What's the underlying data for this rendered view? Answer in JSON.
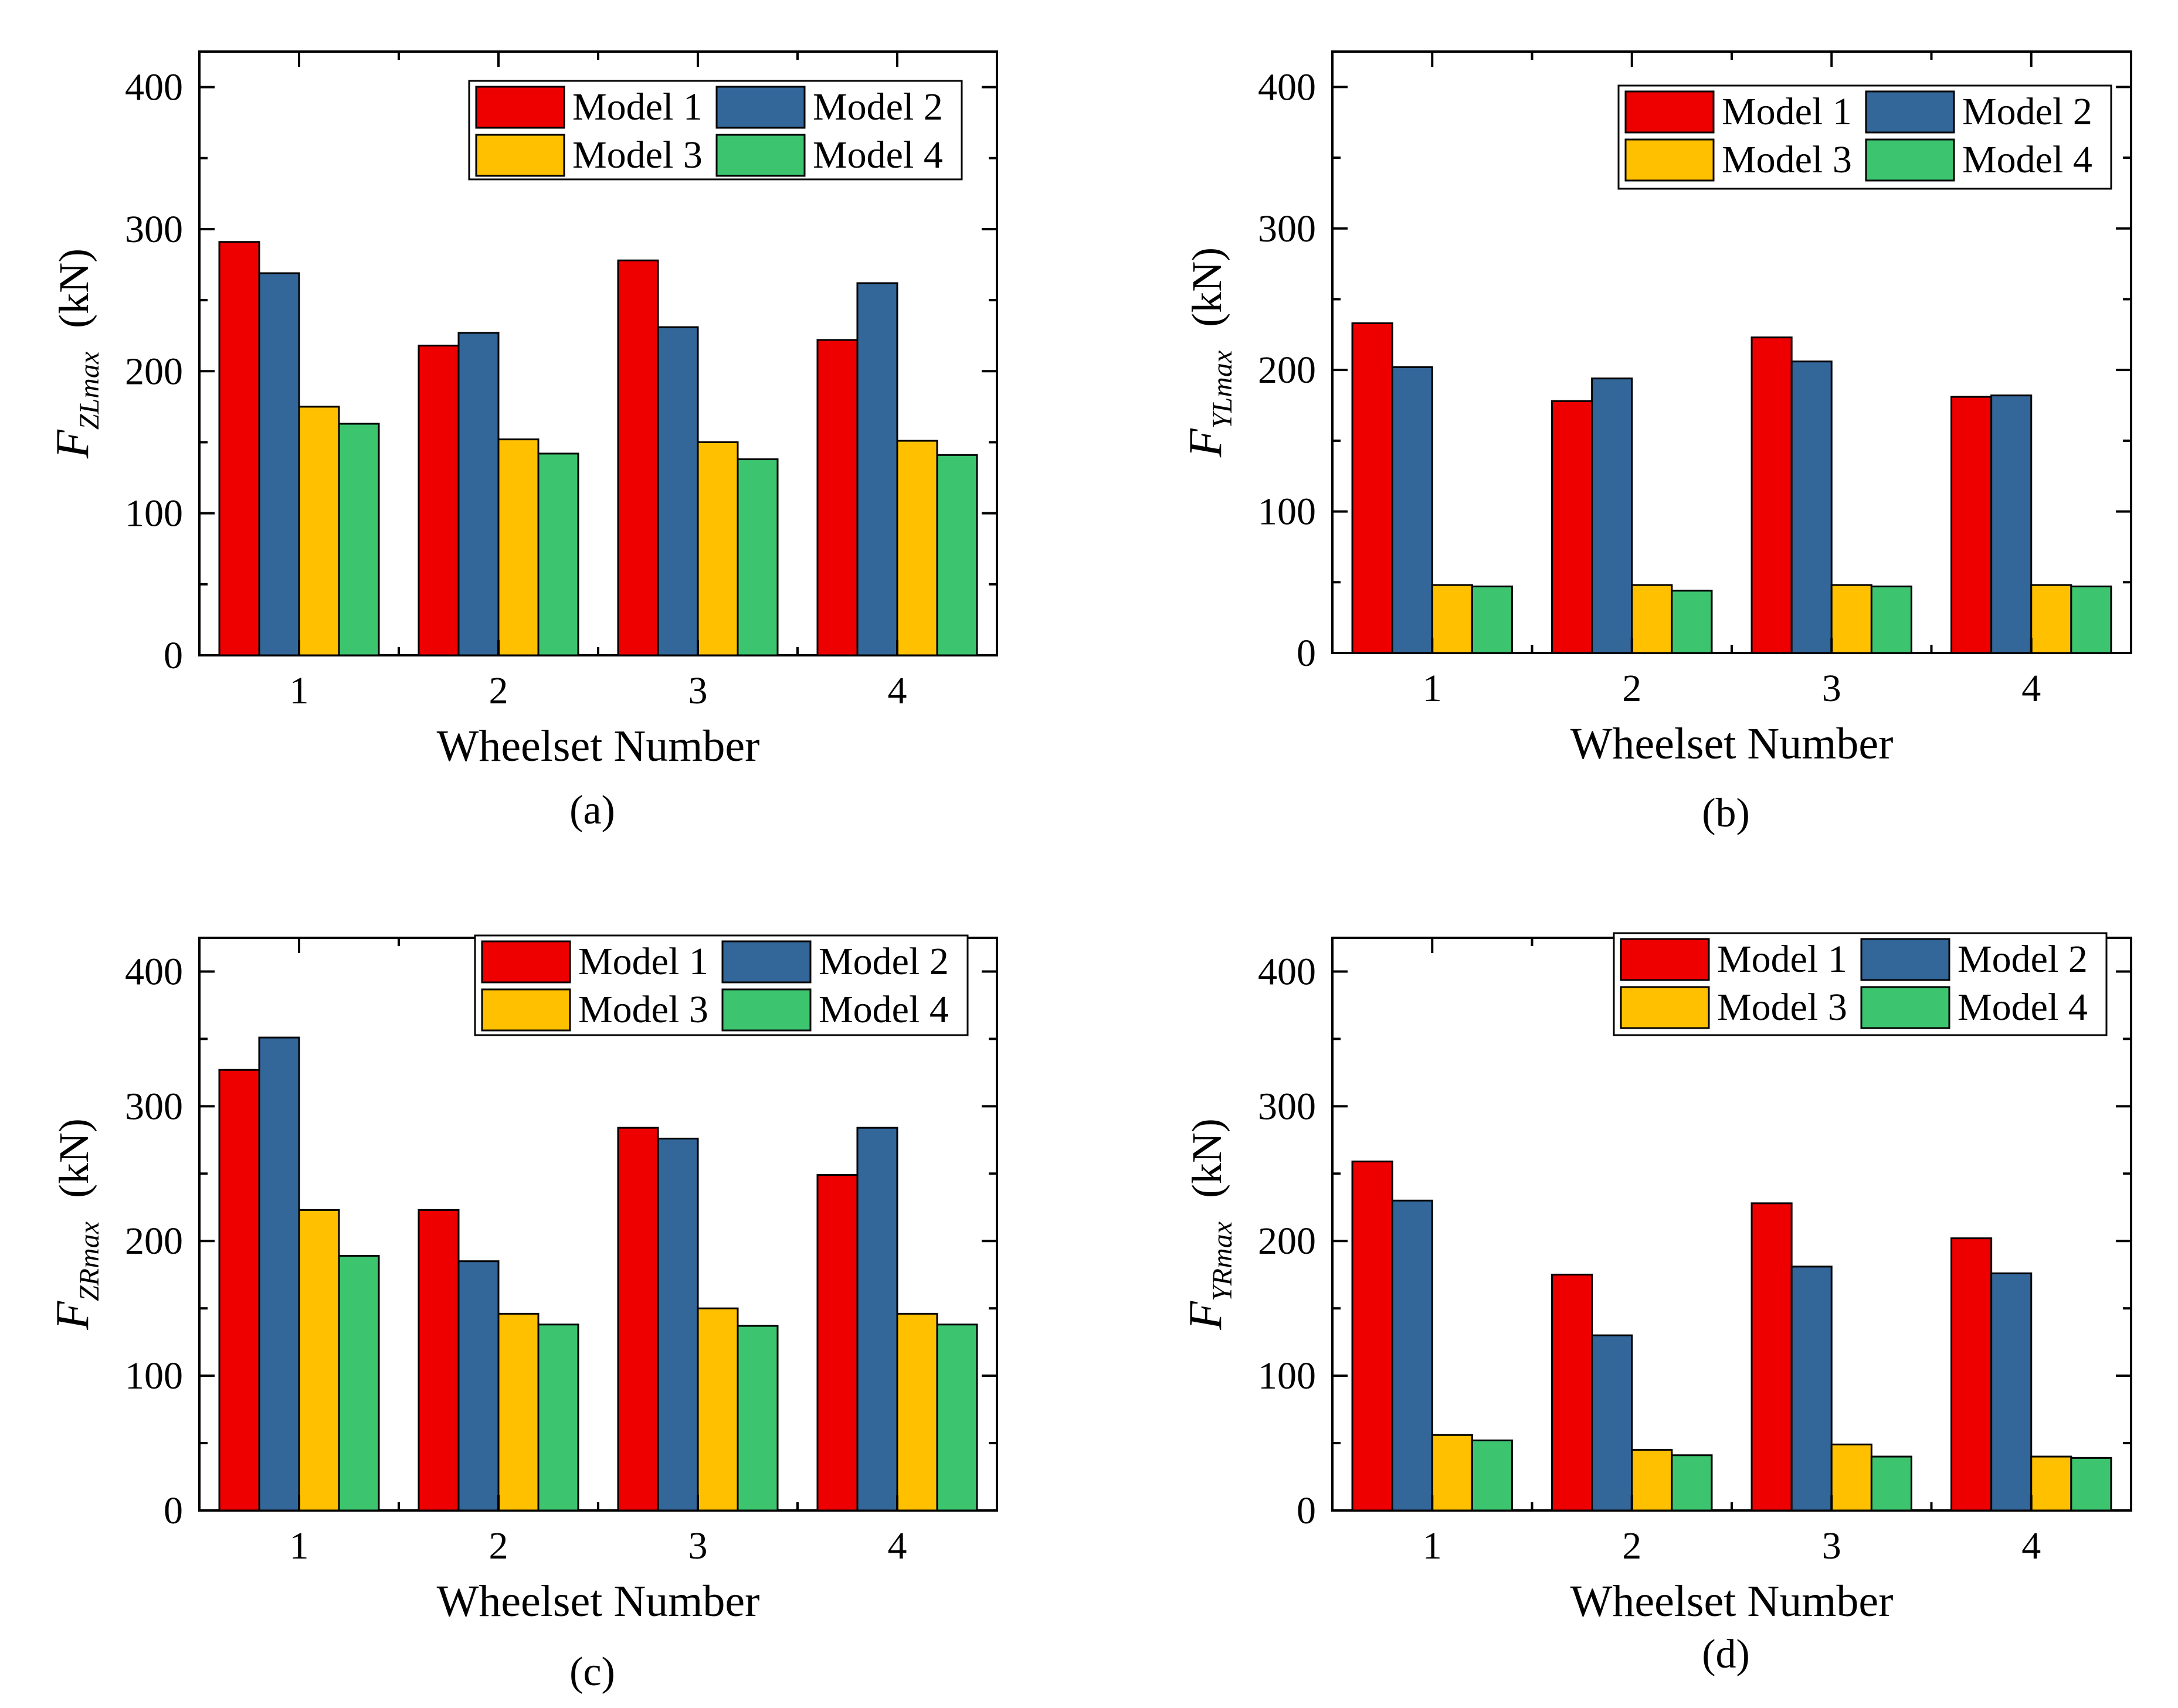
{
  "chart_data": [
    {
      "panel": "a",
      "type": "bar",
      "caption": "(a)",
      "ylabel": {
        "main": "F",
        "sub": "ZLmax",
        "unit": "(kN)"
      },
      "xlabel": "Wheelset Number",
      "categories": [
        "1",
        "2",
        "3",
        "4"
      ],
      "ylim": [
        0,
        425
      ],
      "yticks": [
        "0",
        "100",
        "200",
        "300",
        "400"
      ],
      "series": [
        {
          "name": "Model 1",
          "values": [
            291,
            218,
            278,
            222
          ]
        },
        {
          "name": "Model 2",
          "values": [
            269,
            227,
            231,
            262
          ]
        },
        {
          "name": "Model 3",
          "values": [
            175,
            152,
            150,
            151
          ]
        },
        {
          "name": "Model 4",
          "values": [
            163,
            142,
            138,
            141
          ]
        }
      ]
    },
    {
      "panel": "b",
      "type": "bar",
      "caption": "(b)",
      "ylabel": {
        "main": "F",
        "sub": "YLmax",
        "unit": "(kN)"
      },
      "xlabel": "Wheelset Number",
      "categories": [
        "1",
        "2",
        "3",
        "4"
      ],
      "ylim": [
        0,
        425
      ],
      "yticks": [
        "0",
        "100",
        "200",
        "300",
        "400"
      ],
      "series": [
        {
          "name": "Model 1",
          "values": [
            233,
            178,
            223,
            181
          ]
        },
        {
          "name": "Model 2",
          "values": [
            202,
            194,
            206,
            182
          ]
        },
        {
          "name": "Model 3",
          "values": [
            48,
            48,
            48,
            48
          ]
        },
        {
          "name": "Model 4",
          "values": [
            47,
            44,
            47,
            47
          ]
        }
      ]
    },
    {
      "panel": "c",
      "type": "bar",
      "caption": "(c)",
      "ylabel": {
        "main": "F",
        "sub": "ZRmax",
        "unit": "(kN)"
      },
      "xlabel": "Wheelset Number",
      "categories": [
        "1",
        "2",
        "3",
        "4"
      ],
      "ylim": [
        0,
        425
      ],
      "yticks": [
        "0",
        "100",
        "200",
        "300",
        "400"
      ],
      "series": [
        {
          "name": "Model 1",
          "values": [
            327,
            223,
            284,
            249
          ]
        },
        {
          "name": "Model 2",
          "values": [
            351,
            185,
            276,
            284
          ]
        },
        {
          "name": "Model 3",
          "values": [
            223,
            146,
            150,
            146
          ]
        },
        {
          "name": "Model 4",
          "values": [
            189,
            138,
            137,
            138
          ]
        }
      ]
    },
    {
      "panel": "d",
      "type": "bar",
      "caption": "(d)",
      "ylabel": {
        "main": "F",
        "sub": "YRmax",
        "unit": "(kN)"
      },
      "xlabel": "Wheelset Number",
      "categories": [
        "1",
        "2",
        "3",
        "4"
      ],
      "ylim": [
        0,
        425
      ],
      "yticks": [
        "0",
        "100",
        "200",
        "300",
        "400"
      ],
      "series": [
        {
          "name": "Model 1",
          "values": [
            259,
            175,
            228,
            202
          ]
        },
        {
          "name": "Model 2",
          "values": [
            230,
            130,
            181,
            176
          ]
        },
        {
          "name": "Model 3",
          "values": [
            56,
            45,
            49,
            40
          ]
        },
        {
          "name": "Model 4",
          "values": [
            52,
            41,
            40,
            39
          ]
        }
      ]
    }
  ],
  "series_colors": [
    "#ee0000",
    "#336699",
    "#ffc000",
    "#3dc46f"
  ]
}
